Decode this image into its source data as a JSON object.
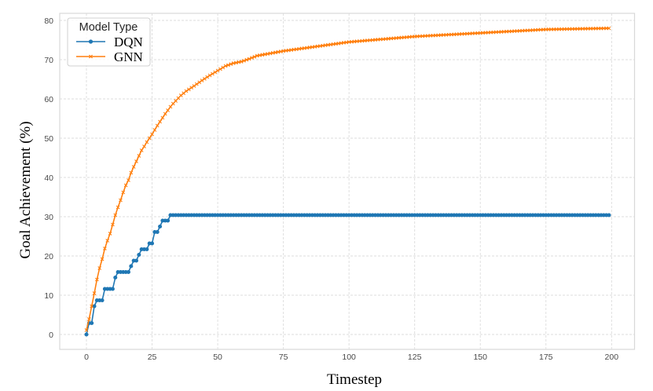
{
  "chart_data": {
    "type": "line",
    "title": "",
    "xlabel": "Timestep",
    "ylabel": "Goal Achievement (%)",
    "xlim": [
      -10,
      209
    ],
    "ylim": [
      -4,
      82
    ],
    "xticks": [
      0,
      25,
      50,
      75,
      100,
      125,
      150,
      175,
      200
    ],
    "yticks": [
      0,
      10,
      20,
      30,
      40,
      50,
      60,
      70,
      80
    ],
    "grid": true,
    "legend": {
      "title": "Model Type",
      "position": "upper left",
      "entries": [
        {
          "name": "DQN",
          "color": "#1f77b4",
          "marker": "circle"
        },
        {
          "name": "GNN",
          "color": "#ff7f0e",
          "marker": "x"
        }
      ]
    },
    "series": [
      {
        "name": "DQN",
        "color": "#1f77b4",
        "marker": "circle",
        "x_start": 0,
        "x_end": 199,
        "step_points": [
          {
            "t": 0,
            "value": 0.0
          },
          {
            "t": 1,
            "value": 2.9
          },
          {
            "t": 3,
            "value": 7.2
          },
          {
            "t": 4,
            "value": 8.7
          },
          {
            "t": 7,
            "value": 11.6
          },
          {
            "t": 11,
            "value": 14.5
          },
          {
            "t": 12,
            "value": 15.9
          },
          {
            "t": 17,
            "value": 17.4
          },
          {
            "t": 18,
            "value": 18.8
          },
          {
            "t": 20,
            "value": 20.3
          },
          {
            "t": 21,
            "value": 21.7
          },
          {
            "t": 24,
            "value": 23.2
          },
          {
            "t": 26,
            "value": 26.1
          },
          {
            "t": 28,
            "value": 27.5
          },
          {
            "t": 29,
            "value": 29.0
          },
          {
            "t": 32,
            "value": 30.4
          }
        ]
      },
      {
        "name": "GNN",
        "color": "#ff7f0e",
        "marker": "x",
        "x_start": 0,
        "x_end": 199,
        "key_points": [
          {
            "t": 0,
            "value": 1.1
          },
          {
            "t": 1,
            "value": 3.9
          },
          {
            "t": 2,
            "value": 7.2
          },
          {
            "t": 3,
            "value": 10.5
          },
          {
            "t": 4,
            "value": 14.0
          },
          {
            "t": 5,
            "value": 16.9
          },
          {
            "t": 6,
            "value": 19.2
          },
          {
            "t": 7,
            "value": 21.9
          },
          {
            "t": 8,
            "value": 23.9
          },
          {
            "t": 9,
            "value": 25.7
          },
          {
            "t": 10,
            "value": 28.0
          },
          {
            "t": 11,
            "value": 30.4
          },
          {
            "t": 12,
            "value": 32.4
          },
          {
            "t": 13,
            "value": 34.2
          },
          {
            "t": 14,
            "value": 36.2
          },
          {
            "t": 15,
            "value": 38.0
          },
          {
            "t": 16,
            "value": 39.3
          },
          {
            "t": 17,
            "value": 41.2
          },
          {
            "t": 18,
            "value": 42.7
          },
          {
            "t": 19,
            "value": 44.1
          },
          {
            "t": 20,
            "value": 45.5
          },
          {
            "t": 21,
            "value": 46.9
          },
          {
            "t": 22,
            "value": 47.9
          },
          {
            "t": 23,
            "value": 49.0
          },
          {
            "t": 24,
            "value": 50.0
          },
          {
            "t": 25,
            "value": 51.0
          },
          {
            "t": 26,
            "value": 52.1
          },
          {
            "t": 27,
            "value": 53.2
          },
          {
            "t": 28,
            "value": 54.2
          },
          {
            "t": 29,
            "value": 55.2
          },
          {
            "t": 30,
            "value": 56.2
          },
          {
            "t": 31,
            "value": 57.1
          },
          {
            "t": 32,
            "value": 58.0
          },
          {
            "t": 33,
            "value": 58.8
          },
          {
            "t": 34,
            "value": 59.5
          },
          {
            "t": 35,
            "value": 60.2
          },
          {
            "t": 36,
            "value": 60.9
          },
          {
            "t": 38,
            "value": 62.0
          },
          {
            "t": 41,
            "value": 63.3
          },
          {
            "t": 44,
            "value": 64.7
          },
          {
            "t": 47,
            "value": 66.0
          },
          {
            "t": 50,
            "value": 67.2
          },
          {
            "t": 53,
            "value": 68.4
          },
          {
            "t": 56,
            "value": 69.1
          },
          {
            "t": 59,
            "value": 69.5
          },
          {
            "t": 62,
            "value": 70.2
          },
          {
            "t": 65,
            "value": 71.0
          },
          {
            "t": 75,
            "value": 72.2
          },
          {
            "t": 87,
            "value": 73.3
          },
          {
            "t": 100,
            "value": 74.5
          },
          {
            "t": 125,
            "value": 75.9
          },
          {
            "t": 150,
            "value": 76.8
          },
          {
            "t": 175,
            "value": 77.7
          },
          {
            "t": 199,
            "value": 78.0
          }
        ]
      }
    ]
  },
  "layout_colors": {
    "grid": "#dcdcdc",
    "frame": "#d8d8d8",
    "background": "#ffffff"
  }
}
